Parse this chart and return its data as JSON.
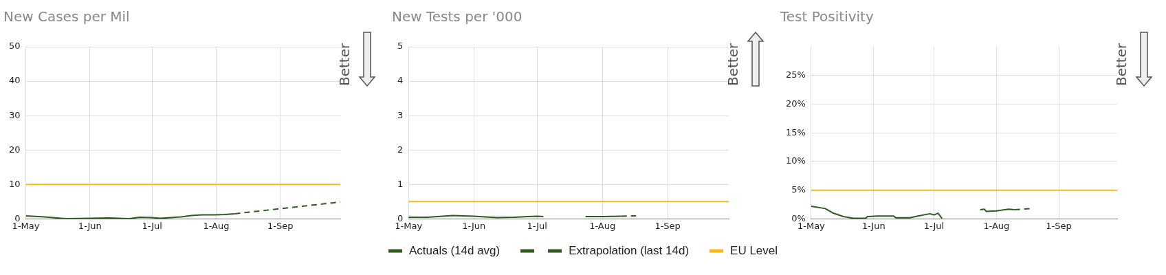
{
  "chart_data": [
    {
      "type": "line",
      "title": "New Cases per Mil",
      "xlim": [
        "--05-01",
        "--09-30"
      ],
      "xticks": [
        {
          "value": "--05-01",
          "label": "1-May"
        },
        {
          "value": "--06-01",
          "label": "1-Jun"
        },
        {
          "value": "--07-01",
          "label": "1-Jul"
        },
        {
          "value": "--08-01",
          "label": "1-Aug"
        },
        {
          "value": "--09-01",
          "label": "1-Sep"
        }
      ],
      "ylim": [
        0,
        50
      ],
      "yticks": [
        0,
        10,
        20,
        30,
        40,
        50
      ],
      "grid": true,
      "marker": "none",
      "annotations": [
        "Better"
      ],
      "series": [
        {
          "color": "#2d5a1e",
          "x": [
            "--05-01",
            "--05-10",
            "--05-20",
            "--06-01",
            "--06-10",
            "--06-20",
            "--06-25",
            "--07-01",
            "--07-05",
            "--07-15",
            "--07-20",
            "--07-25",
            "--08-01",
            "--08-05",
            "--08-10"
          ],
          "values": [
            0.9,
            0.6,
            0.1,
            0.2,
            0.3,
            0.1,
            0.5,
            0.4,
            0.2,
            0.6,
            1.0,
            1.2,
            1.2,
            1.3,
            1.5
          ]
        },
        {
          "color": "#2d5a1e",
          "line_style": "dashed",
          "x": [
            "--08-10",
            "--09-30"
          ],
          "values": [
            1.5,
            4.9
          ]
        },
        {
          "color": "#f9b91c",
          "x": [
            "--05-01",
            "--09-30"
          ],
          "values": [
            10,
            10
          ]
        }
      ]
    },
    {
      "type": "line",
      "title": "New Tests per '000",
      "xlim": [
        "--05-01",
        "--09-30"
      ],
      "xticks": [
        {
          "value": "--05-01",
          "label": "1-May"
        },
        {
          "value": "--06-01",
          "label": "1-Jun"
        },
        {
          "value": "--07-01",
          "label": "1-Jul"
        },
        {
          "value": "--08-01",
          "label": "1-Aug"
        },
        {
          "value": "--09-01",
          "label": "1-Sep"
        }
      ],
      "ylim": [
        0,
        5
      ],
      "yticks": [
        0,
        1,
        2,
        3,
        4,
        5
      ],
      "grid": true,
      "marker": "none",
      "legend": "bottom",
      "annotations": [
        "Better"
      ],
      "series": [
        {
          "name": "Actuals (14d avg)",
          "color": "#2d5a1e",
          "x": [
            "--05-01",
            "--05-10",
            "--05-22",
            "--06-01",
            "--06-12",
            "--06-20",
            "--07-01",
            "--07-04",
            "--07-14",
            "--07-24",
            "--08-01",
            "--08-10"
          ],
          "values": [
            0.05,
            0.05,
            0.1,
            0.08,
            0.04,
            0.05,
            0.08,
            0.07,
            null,
            0.07,
            0.07,
            0.08
          ]
        },
        {
          "name": "Extrapolation (last 14d)",
          "color": "#2d5a1e",
          "line_style": "dashed",
          "x": [
            "--08-10",
            "--08-17"
          ],
          "values": [
            0.08,
            0.09
          ]
        },
        {
          "name": "EU Level",
          "color": "#f9b91c",
          "x": [
            "--05-01",
            "--09-30"
          ],
          "values": [
            0.5,
            0.5
          ]
        }
      ]
    },
    {
      "type": "line",
      "title": "Test Positivity",
      "xlim": [
        "--05-01",
        "--09-30"
      ],
      "xticks": [
        {
          "value": "--05-01",
          "label": "1-May"
        },
        {
          "value": "--06-01",
          "label": "1-Jun"
        },
        {
          "value": "--07-01",
          "label": "1-Jul"
        },
        {
          "value": "--08-01",
          "label": "1-Aug"
        },
        {
          "value": "--09-01",
          "label": "1-Sep"
        }
      ],
      "ylim": [
        0,
        30
      ],
      "yticks": [
        {
          "value": 0,
          "label": "0%"
        },
        {
          "value": 5,
          "label": "5%"
        },
        {
          "value": 10,
          "label": "10%"
        },
        {
          "value": 15,
          "label": "15%"
        },
        {
          "value": 20,
          "label": "20%"
        },
        {
          "value": 25,
          "label": "25%"
        }
      ],
      "grid": true,
      "marker": "none",
      "annotations": [
        "Better"
      ],
      "series": [
        {
          "color": "#2d5a1e",
          "x": [
            "--05-01",
            "--05-08",
            "--05-12",
            "--05-17",
            "--05-22",
            "--05-28",
            "--05-29",
            "--06-03",
            "--06-11",
            "--06-12",
            "--06-19",
            "--06-23",
            "--06-29",
            "--07-01",
            "--07-03",
            "--07-05",
            "--07-15",
            "--07-24",
            "--07-26",
            "--07-27",
            "--08-01",
            "--08-07",
            "--08-10"
          ],
          "values": [
            2.2,
            1.8,
            1.0,
            0.4,
            0.1,
            0.1,
            0.4,
            0.5,
            0.5,
            0.2,
            0.2,
            0.5,
            0.9,
            0.7,
            1.0,
            0.1,
            null,
            1.6,
            1.7,
            1.3,
            1.4,
            1.7,
            1.6
          ]
        },
        {
          "color": "#2d5a1e",
          "line_style": "dashed",
          "x": [
            "--08-10",
            "--08-18"
          ],
          "values": [
            1.6,
            1.8
          ]
        },
        {
          "color": "#f9b91c",
          "x": [
            "--05-01",
            "--09-30"
          ],
          "values": [
            5,
            5
          ]
        }
      ]
    }
  ]
}
